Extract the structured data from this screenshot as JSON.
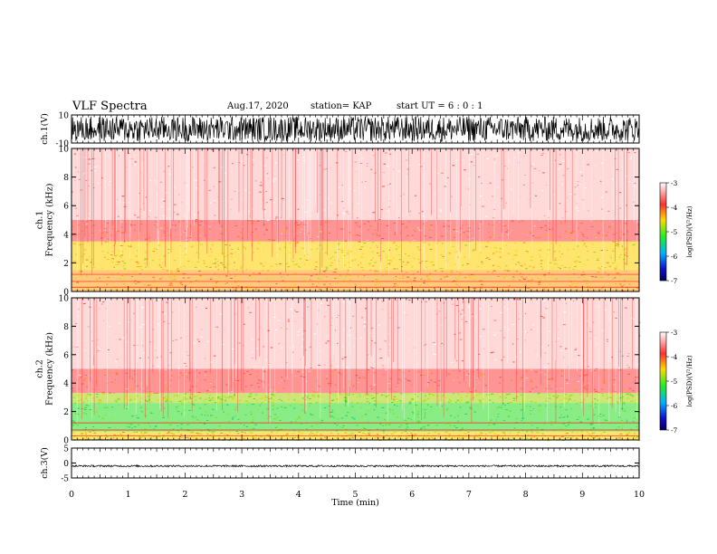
{
  "header": {
    "title": "VLF Spectra",
    "date": "Aug.17, 2020",
    "station": "station= KAP",
    "start": "start UT =  6 : 0 : 1"
  },
  "chart_data": [
    {
      "type": "line",
      "panel": "ch1-waveform",
      "ylabel": "ch.1(V)",
      "ylim": [
        -10,
        10
      ],
      "yticks": [
        "10",
        "-10"
      ],
      "xlim": [
        0,
        9.83
      ],
      "envelope": "noise band roughly between -9 and 9 V across full time range"
    },
    {
      "type": "heatmap",
      "panel": "ch1-spectrogram",
      "ylabel": "ch.1\nFrequency (kHz)",
      "ylim": [
        0,
        10
      ],
      "yticks": [
        "0",
        "2",
        "4",
        "6",
        "8",
        "10"
      ],
      "xlim": [
        0,
        9.83
      ],
      "bands": [
        {
          "from": 0,
          "to": 1.5,
          "level": -4.0
        },
        {
          "from": 1.5,
          "to": 3.5,
          "level": -4.2
        },
        {
          "from": 3.5,
          "to": 5,
          "level": -3.6
        },
        {
          "from": 5,
          "to": 10,
          "level": -3.2
        }
      ],
      "colorbar": {
        "label": "log(PSD)(V²/Hz)",
        "min": -7,
        "max": -3,
        "ticks": [
          "-3",
          "-4",
          "-5",
          "-6",
          "-7"
        ]
      }
    },
    {
      "type": "heatmap",
      "panel": "ch2-spectrogram",
      "ylabel": "ch.2\nFrequency (kHz)",
      "ylim": [
        0,
        10
      ],
      "yticks": [
        "0",
        "2",
        "4",
        "6",
        "8",
        "10"
      ],
      "xlim": [
        0,
        9.83
      ],
      "bands": [
        {
          "from": 0,
          "to": 0.6,
          "level": -4.2
        },
        {
          "from": 0.6,
          "to": 2.6,
          "level": -4.9
        },
        {
          "from": 2.6,
          "to": 3.3,
          "level": -4.5
        },
        {
          "from": 3.3,
          "to": 5,
          "level": -3.6
        },
        {
          "from": 5,
          "to": 10,
          "level": -3.2
        }
      ],
      "colorbar": {
        "label": "log(PSD)(V²/Hz)",
        "min": -7,
        "max": -3,
        "ticks": [
          "-3",
          "-4",
          "-5",
          "-6",
          "-7"
        ]
      }
    },
    {
      "type": "line",
      "panel": "ch3-waveform",
      "ylabel": "ch.3(V)",
      "ylim": [
        -5,
        5
      ],
      "yticks": [
        "5",
        "0",
        "-5"
      ],
      "xlim": [
        0,
        9.83
      ],
      "envelope": "narrow band near -1.0 V (about -1.3 to -0.7 V)"
    }
  ],
  "xaxis": {
    "label": "Time (min)",
    "ticks": [
      "0",
      "1",
      "2",
      "3",
      "4",
      "5",
      "6",
      "7",
      "8",
      "9",
      "10"
    ],
    "range": [
      0,
      10
    ]
  }
}
